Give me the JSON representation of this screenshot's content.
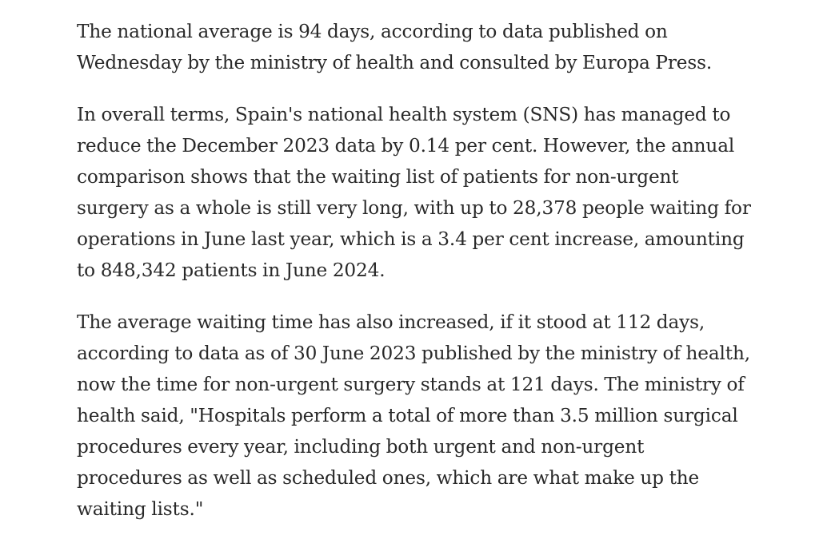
{
  "article": {
    "paragraphs": [
      {
        "lines": [
          "The national average is 94 days, according to data published on",
          "Wednesday by the ministry of health and consulted by Europa Press."
        ]
      },
      {
        "lines": [
          "In overall terms, Spain's national health system (SNS) has managed to",
          "reduce the December 2023 data by 0.14 per cent. However, the annual",
          "comparison shows that the waiting list of patients for non-urgent",
          "surgery as a whole is still very long, with up to 28,378 people waiting for",
          "operations in June last year, which is a 3.4 per cent increase, amounting",
          "to 848,342 patients in June 2024."
        ]
      },
      {
        "lines": [
          "The average waiting time has also increased, if it stood at 112 days,",
          "according to data as of 30 June 2023 published by the ministry of health,",
          "now the time for non-urgent surgery stands at 121 days. The ministry of",
          "health said, \"Hospitals perform a total of more than 3.5 million surgical",
          "procedures every year, including both urgent and non-urgent",
          "procedures as well as scheduled ones, which are what make up the",
          "waiting lists.\""
        ]
      }
    ]
  },
  "colors": {
    "text": "#292929",
    "background": "#ffffff"
  }
}
